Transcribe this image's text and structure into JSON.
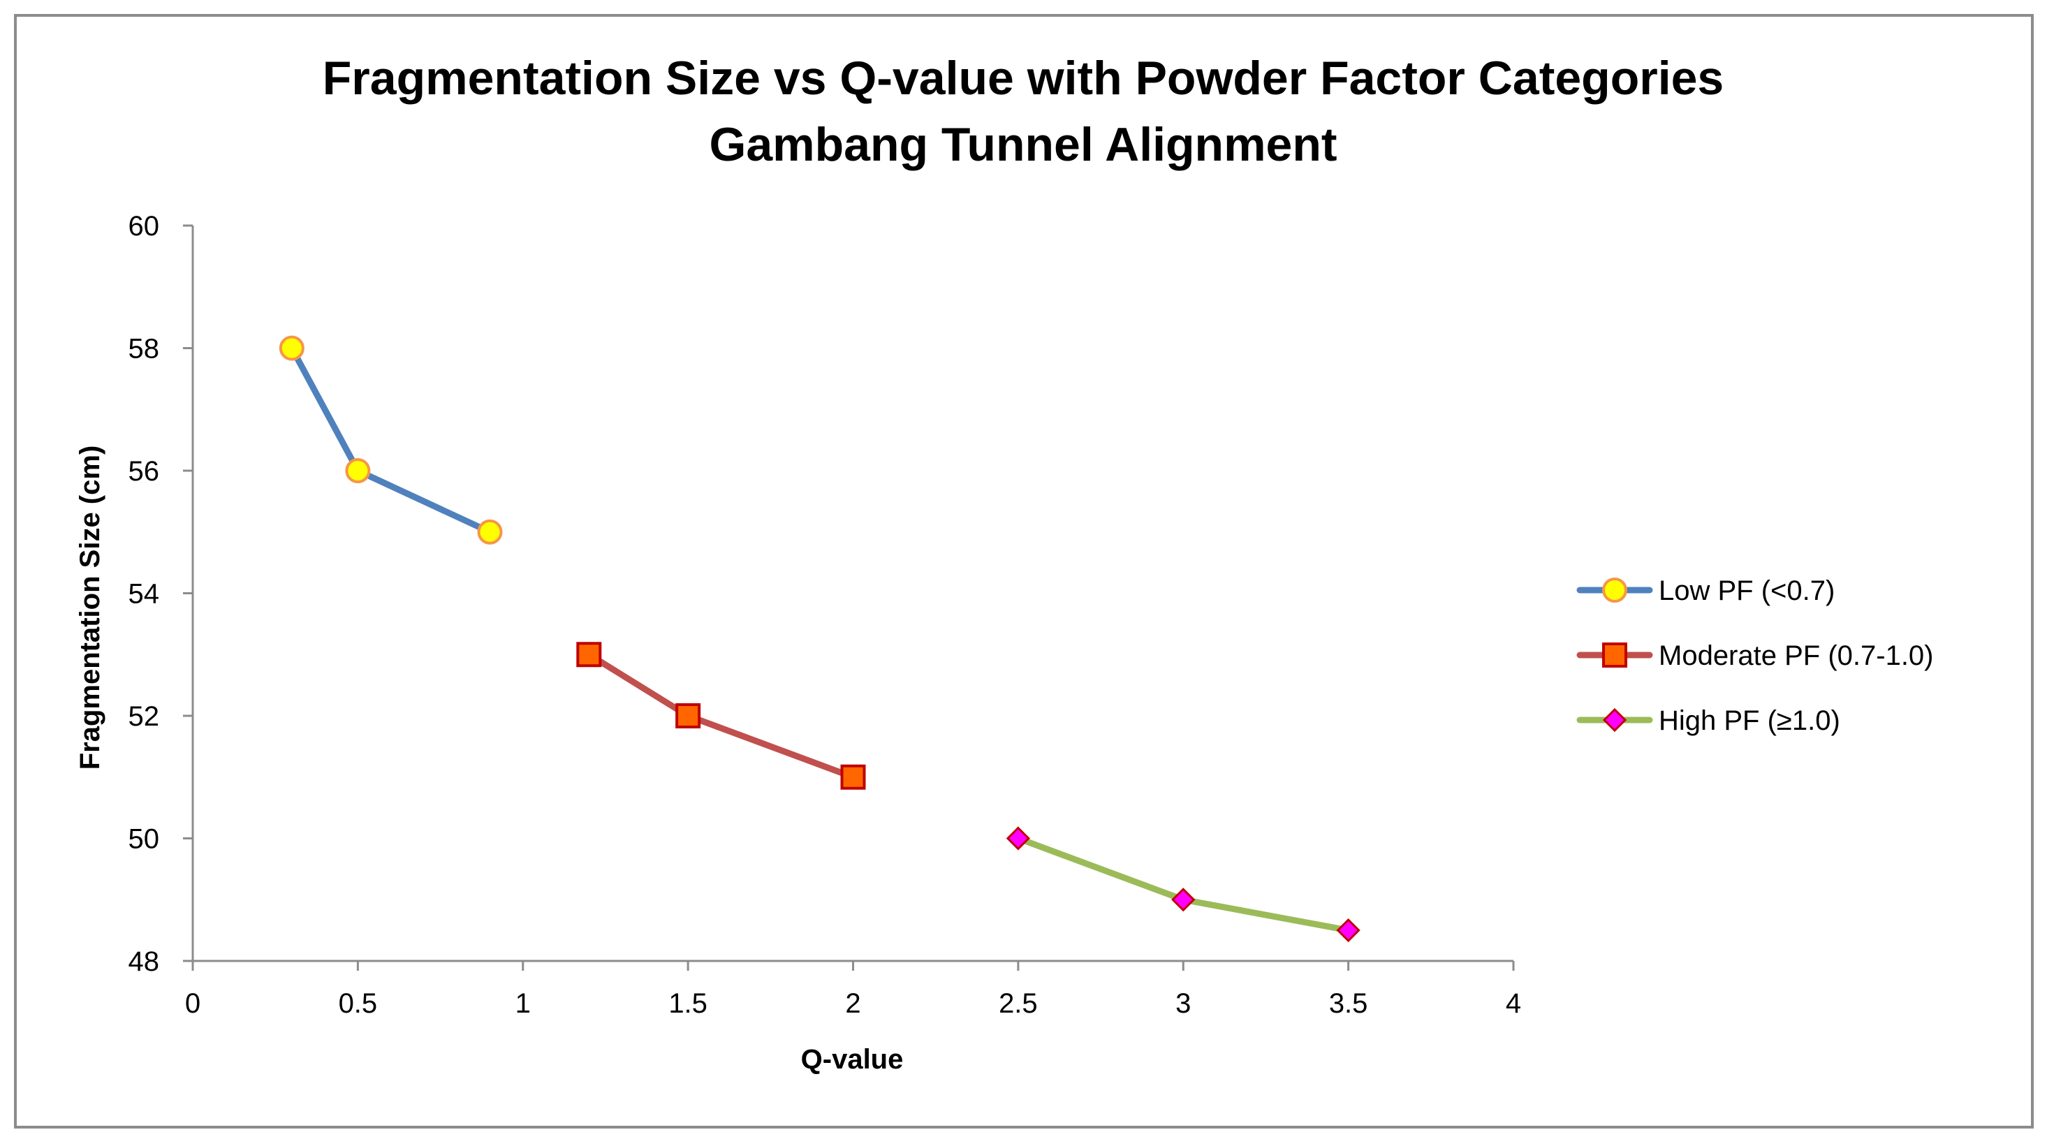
{
  "chart_data": {
    "type": "line",
    "title_lines": [
      "Fragmentation Size vs Q-value with Powder Factor Categories",
      "Gambang Tunnel Alignment"
    ],
    "xlabel": "Q-value",
    "ylabel": "Fragmentation Size (cm)",
    "xlim": [
      0,
      4
    ],
    "ylim": [
      48,
      60
    ],
    "x_ticks": [
      0,
      0.5,
      1,
      1.5,
      2,
      2.5,
      3,
      3.5,
      4
    ],
    "x_tick_labels": [
      "0",
      "0.5",
      "1",
      "1.5",
      "2",
      "2.5",
      "3",
      "3.5",
      "4"
    ],
    "y_ticks": [
      48,
      50,
      52,
      54,
      56,
      58,
      60
    ],
    "y_tick_labels": [
      "48",
      "50",
      "52",
      "54",
      "56",
      "58",
      "60"
    ],
    "grid": false,
    "legend_position": "right",
    "series": [
      {
        "name": "Low PF (<0.7)",
        "x": [
          0.3,
          0.5,
          0.9
        ],
        "y": [
          58,
          56,
          55
        ],
        "line_color": "#4F81BD",
        "marker": "circle",
        "marker_fill": "#FFFF00",
        "marker_stroke": "#F79646"
      },
      {
        "name": "Moderate PF (0.7-1.0)",
        "x": [
          1.2,
          1.5,
          2.0
        ],
        "y": [
          53,
          52,
          51
        ],
        "line_color": "#C0504D",
        "marker": "square",
        "marker_fill": "#FF6600",
        "marker_stroke": "#C00000"
      },
      {
        "name": "High PF (≥1.0)",
        "x": [
          2.5,
          3.0,
          3.5
        ],
        "y": [
          50,
          49,
          48.5
        ],
        "line_color": "#9BBB59",
        "marker": "diamond",
        "marker_fill": "#FF00FF",
        "marker_stroke": "#C00000"
      }
    ]
  }
}
